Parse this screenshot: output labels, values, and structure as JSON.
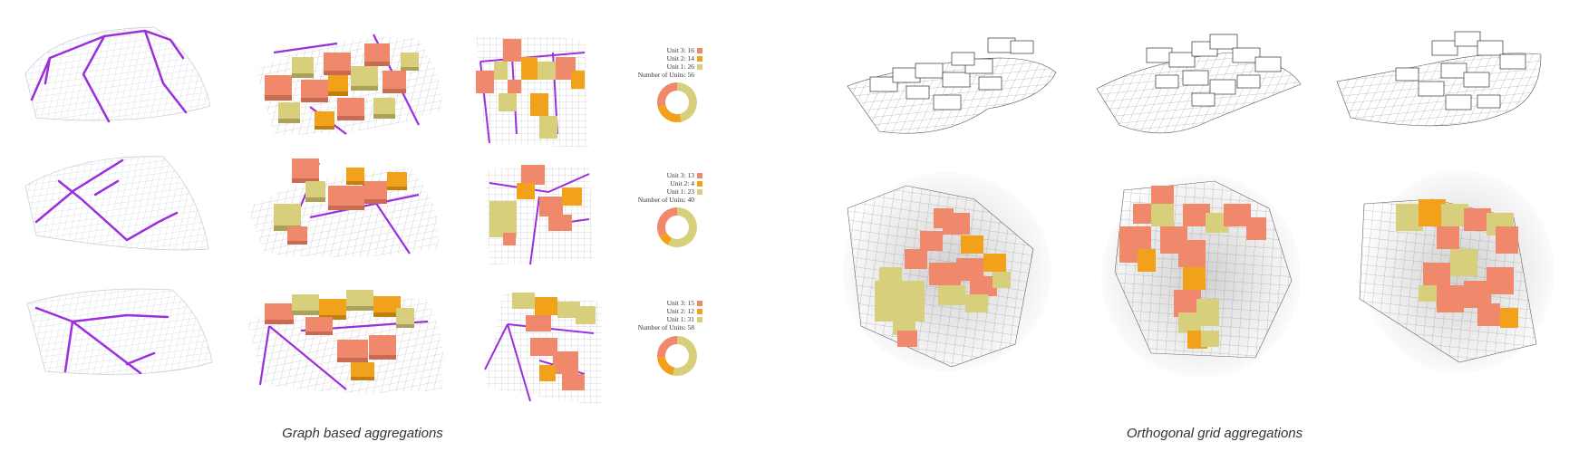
{
  "colors": {
    "unit3": "#f0896b",
    "unit2": "#f2a21a",
    "unit1": "#d8cf7c",
    "graph": "#9b2fdc",
    "grid": "#9a9a9a",
    "caption": "#333333"
  },
  "captions": {
    "graph": "Graph based aggregations",
    "orthogonal": "Orthogonal grid aggregations"
  },
  "stats": [
    {
      "unit3": "Unit 3: 16",
      "unit2": "Unit 2: 14",
      "unit1": "Unit 1: 26",
      "total": "Number of Units: 56",
      "values": {
        "unit3": 16,
        "unit2": 14,
        "unit1": 26
      }
    },
    {
      "unit3": "Unit 3: 13",
      "unit2": "Unit 2: 4",
      "unit1": "Unit 1: 23",
      "total": "Number of Units: 40",
      "values": {
        "unit3": 13,
        "unit2": 4,
        "unit1": 23
      }
    },
    {
      "unit3": "Unit 3: 15",
      "unit2": "Unit 2: 12",
      "unit1": "Unit 1: 31",
      "total": "Number of Units: 58",
      "values": {
        "unit3": 15,
        "unit2": 12,
        "unit1": 31
      }
    }
  ]
}
